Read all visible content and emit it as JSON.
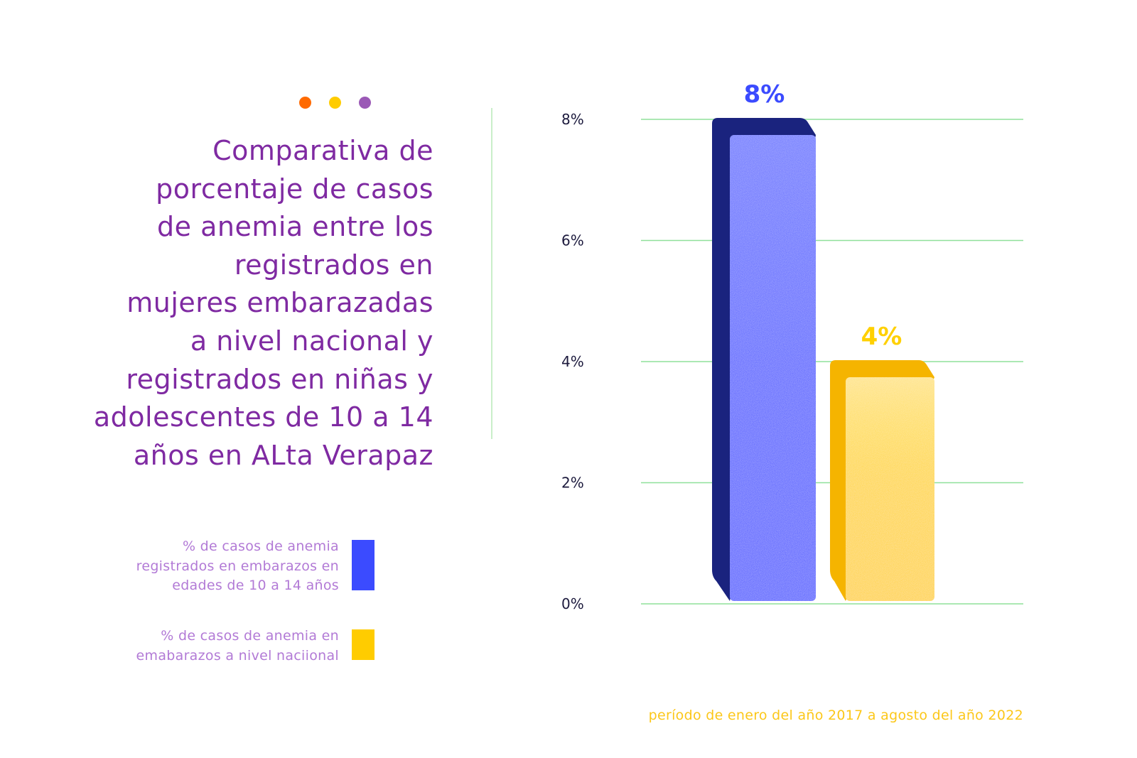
{
  "decor": {
    "dots": [
      {
        "name": "orange-dot",
        "color": "#ff6a00"
      },
      {
        "name": "yellow-dot",
        "color": "#ffcc00"
      },
      {
        "name": "purple-dot",
        "color": "#9b59b6"
      }
    ]
  },
  "title": {
    "lines": [
      "Comparativa de",
      "porcentaje de casos",
      "de anemia entre los",
      "registrados en",
      "mujeres embarazadas",
      "a nivel nacional y",
      "registrados en niñas y",
      "adolescentes de 10 a 14",
      "años en ALta Verapaz"
    ]
  },
  "legend": [
    {
      "lines": [
        "% de casos de anemia",
        "registrados en embarazos en",
        "edades de 10 a 14 años"
      ],
      "color": "#3b4bff"
    },
    {
      "lines": [
        "% de casos de anemia en",
        "emabarazos a nivel naciional"
      ],
      "color": "#ffcc00"
    }
  ],
  "footer": "período de enero del año 2017 a agosto del año 2022",
  "colors": {
    "grid": "#8fe09a",
    "blue_front": "#3b4bff",
    "blue_side": "#1a237e",
    "yellow_front": "#ffd000",
    "yellow_side": "#f5b400",
    "tick_text": "#1c1a3d"
  },
  "chart_data": {
    "type": "bar",
    "title": "Comparativa de porcentaje de casos de anemia entre los registrados en mujeres embarazadas a nivel nacional y registrados en niñas y adolescentes de 10 a 14 años en ALta Verapaz",
    "categories": [
      "% de casos de anemia registrados en embarazos en edades de 10 a 14 años",
      "% de casos de anemia en emabarazos a nivel naciional"
    ],
    "values": [
      8,
      4
    ],
    "value_labels": [
      "8%",
      "4%"
    ],
    "ylim": [
      0,
      8
    ],
    "yticks": [
      0,
      2,
      4,
      6,
      8
    ],
    "ytick_labels": [
      "0%",
      "2%",
      "4%",
      "6%",
      "8%"
    ],
    "xlabel": "",
    "ylabel": "",
    "grid": true,
    "legend_position": "left",
    "note": "período de enero del año 2017 a agosto del año 2022"
  }
}
